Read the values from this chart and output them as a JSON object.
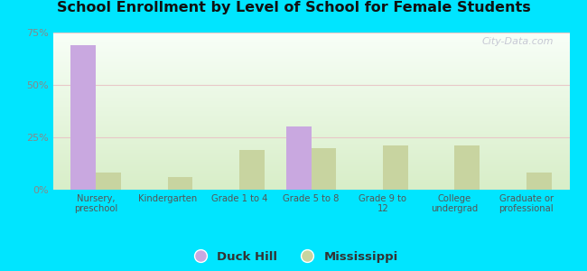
{
  "title": "School Enrollment by Level of School for Female Students",
  "categories": [
    "Nursery,\npreschool",
    "Kindergarten",
    "Grade 1 to 4",
    "Grade 5 to 8",
    "Grade 9 to\n12",
    "College\nundergrad",
    "Graduate or\nprofessional"
  ],
  "duck_hill": [
    69,
    0,
    0,
    30,
    0,
    0,
    0
  ],
  "mississippi": [
    8,
    6,
    19,
    20,
    21,
    21,
    8
  ],
  "duck_hill_color": "#c9a8e0",
  "mississippi_color": "#c8d4a0",
  "ylim": [
    0,
    75
  ],
  "yticks": [
    0,
    25,
    50,
    75
  ],
  "ytick_labels": [
    "0%",
    "25%",
    "50%",
    "75%"
  ],
  "background_outer": "#00e5ff",
  "background_inner_top": "#f0f8f0",
  "background_inner_bottom": "#d8eec8",
  "watermark": "City-Data.com",
  "legend_duck_hill": "Duck Hill",
  "legend_mississippi": "Mississippi",
  "bar_width": 0.35,
  "grid_color": "#e8c8c8",
  "ytick_color": "#888888",
  "xtick_color": "#555555"
}
